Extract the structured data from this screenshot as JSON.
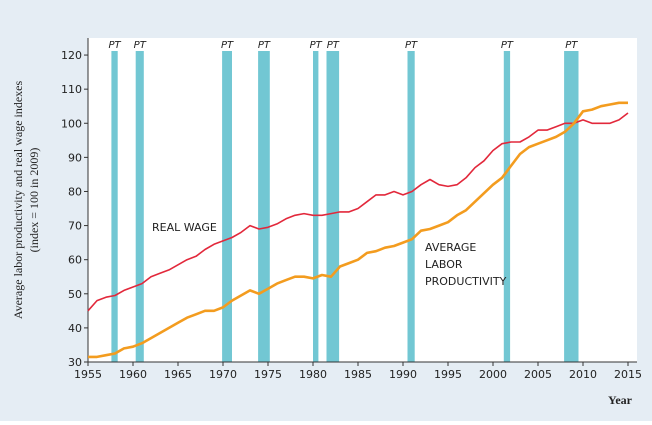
{
  "chart_data": {
    "type": "line",
    "y_label": [
      "Average labor productivity and real wage indexes",
      "(index = 100 in 2009)"
    ],
    "x_label": "Year",
    "xlim": [
      1955,
      2016
    ],
    "ylim": [
      30,
      125
    ],
    "xticks": [
      1955,
      1960,
      1965,
      1970,
      1975,
      1980,
      1985,
      1990,
      1995,
      2000,
      2005,
      2010,
      2015
    ],
    "yticks": [
      30,
      40,
      50,
      60,
      70,
      80,
      90,
      100,
      110,
      120
    ],
    "shading_color": "#72c7d3",
    "recessions": [
      {
        "label": "PT",
        "start": 1957.6,
        "end": 1958.3
      },
      {
        "label": "PT",
        "start": 1960.3,
        "end": 1961.2
      },
      {
        "label": "PT",
        "start": 1969.9,
        "end": 1971.0
      },
      {
        "label": "PT",
        "start": 1973.9,
        "end": 1975.2
      },
      {
        "label": "PT",
        "start": 1980.0,
        "end": 1980.6
      },
      {
        "label": "PT",
        "start": 1981.5,
        "end": 1982.9
      },
      {
        "label": "PT",
        "start": 1990.5,
        "end": 1991.3
      },
      {
        "label": "PT",
        "start": 2001.2,
        "end": 2001.9
      },
      {
        "label": "PT",
        "start": 2007.9,
        "end": 2009.5
      }
    ],
    "annotations": [
      [
        "REAL WAGE"
      ],
      [
        "AVERAGE",
        "LABOR",
        "PRODUCTIVITY"
      ]
    ],
    "x": [
      1955,
      1956,
      1957,
      1958,
      1959,
      1960,
      1961,
      1962,
      1963,
      1964,
      1965,
      1966,
      1967,
      1968,
      1969,
      1970,
      1971,
      1972,
      1973,
      1974,
      1975,
      1976,
      1977,
      1978,
      1979,
      1980,
      1981,
      1982,
      1983,
      1984,
      1985,
      1986,
      1987,
      1988,
      1989,
      1990,
      1991,
      1992,
      1993,
      1994,
      1995,
      1996,
      1997,
      1998,
      1999,
      2000,
      2001,
      2002,
      2003,
      2004,
      2005,
      2006,
      2007,
      2008,
      2009,
      2010,
      2011,
      2012,
      2013,
      2014,
      2015
    ],
    "series": [
      {
        "name": "REAL WAGE",
        "color": "#e2283b",
        "values": [
          45,
          48,
          49,
          49.5,
          51,
          52,
          53,
          55,
          56,
          57,
          58.5,
          60,
          61,
          63,
          64.5,
          65.5,
          66.5,
          68,
          70,
          69,
          69.5,
          70.5,
          72,
          73,
          73.5,
          73,
          73,
          73.5,
          74,
          74,
          75,
          77,
          79,
          79,
          80,
          79,
          80,
          82,
          83.5,
          82,
          81.5,
          82,
          84,
          87,
          89,
          92,
          94,
          94.5,
          94.5,
          96,
          98,
          98,
          99,
          100,
          100,
          101,
          100,
          100,
          100,
          101,
          103
        ]
      },
      {
        "name": "AVERAGE LABOR PRODUCTIVITY",
        "color": "#f39c1f",
        "values": [
          31.5,
          31.5,
          32,
          32.5,
          34,
          34.5,
          35.5,
          37,
          38.5,
          40,
          41.5,
          43,
          44,
          45,
          45,
          46,
          48,
          49.5,
          51,
          50,
          51.5,
          53,
          54,
          55,
          55,
          54.5,
          55.5,
          55,
          58,
          59,
          60,
          62,
          62.5,
          63.5,
          64,
          65,
          66,
          68.5,
          69,
          70,
          71,
          73,
          74.5,
          77,
          79.5,
          82,
          84,
          87.5,
          91,
          93,
          94,
          95,
          96,
          97.5,
          100,
          103.5,
          104,
          105,
          105.5,
          106,
          106
        ]
      }
    ]
  }
}
